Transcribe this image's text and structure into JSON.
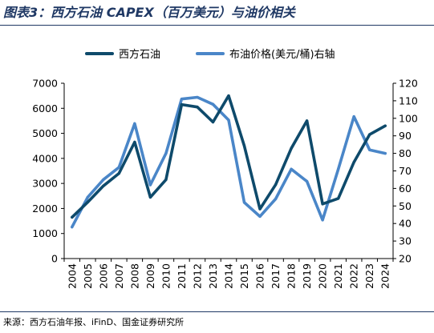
{
  "title": "图表3：西方石油 CAPEX（百万美元）与油价相关",
  "source": "来源：西方石油年报、iFinD、国金证券研究所",
  "colors": {
    "capex": "#0e4a6b",
    "oil": "#4a86c8",
    "title": "#1f3864"
  },
  "chart_data": {
    "type": "line",
    "categories": [
      "2004",
      "2005",
      "2006",
      "2007",
      "2008",
      "2009",
      "2010",
      "2011",
      "2012",
      "2013",
      "2014",
      "2015",
      "2016",
      "2017",
      "2018",
      "2019",
      "2020",
      "2021",
      "2022",
      "2023",
      "2024"
    ],
    "series": [
      {
        "name": "西方石油",
        "axis": "left",
        "values": [
          1650,
          2250,
          2900,
          3400,
          4650,
          2450,
          3150,
          6150,
          6050,
          5450,
          6500,
          4500,
          1980,
          2950,
          4400,
          5500,
          2180,
          2400,
          3850,
          4950,
          5300
        ]
      },
      {
        "name": "布油价格(美元/桶)右轴",
        "axis": "right",
        "values": [
          38,
          55,
          65,
          72,
          97,
          62,
          80,
          111,
          112,
          108,
          99,
          52,
          44,
          54,
          71,
          64,
          42,
          71,
          101,
          82,
          80
        ]
      }
    ],
    "y_left": {
      "min": 0,
      "max": 7000,
      "ticks": [
        0,
        1000,
        2000,
        3000,
        4000,
        5000,
        6000,
        7000
      ]
    },
    "y_right": {
      "min": 20,
      "max": 120,
      "ticks": [
        20,
        30,
        40,
        50,
        60,
        70,
        80,
        90,
        100,
        110,
        120
      ]
    },
    "legend_position": "top"
  }
}
